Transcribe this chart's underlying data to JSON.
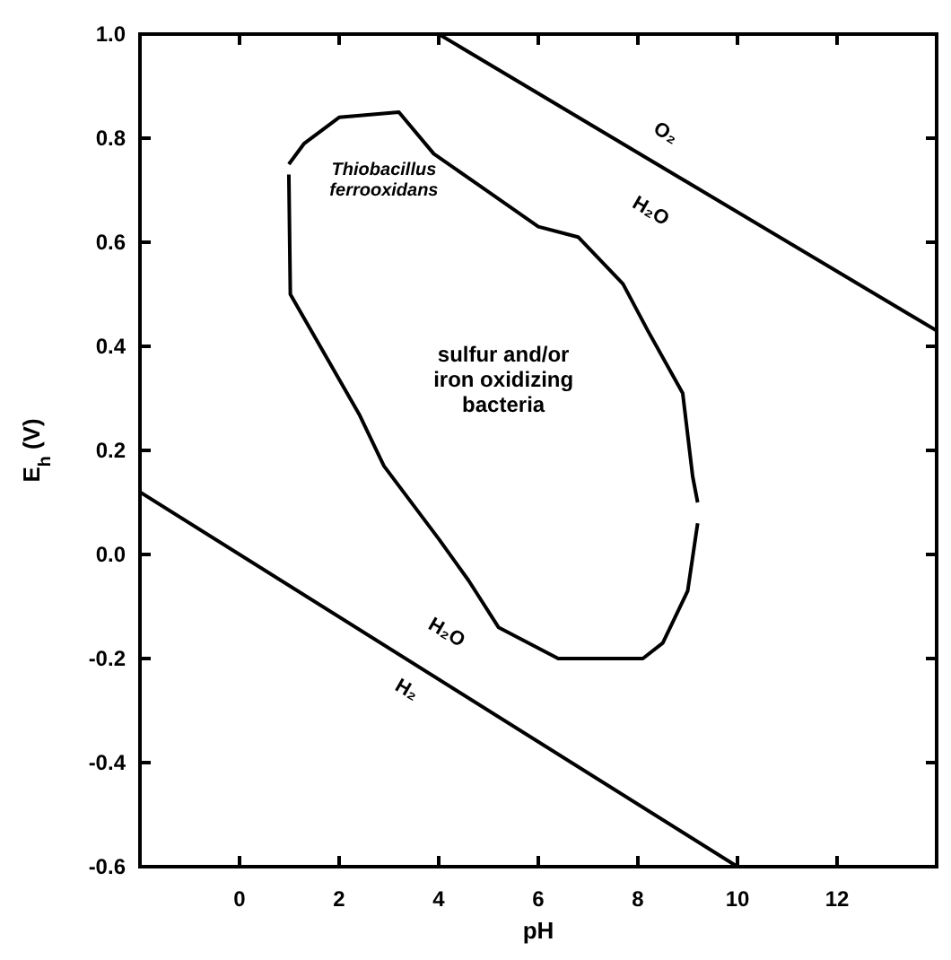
{
  "chart_data": {
    "type": "line",
    "xlabel": "pH",
    "ylabel": "E$_{h}$ (V)",
    "xlim": [
      -2,
      14
    ],
    "ylim": [
      -0.6,
      1.0
    ],
    "xticks": [
      0,
      2,
      4,
      6,
      8,
      10,
      12
    ],
    "yticks": [
      {
        "value": -0.6,
        "label": "-0.6"
      },
      {
        "value": -0.4,
        "label": "-0.4"
      },
      {
        "value": -0.2,
        "label": "-0.2"
      },
      {
        "value": 0,
        "label": "0.0"
      },
      {
        "value": 0.2,
        "label": "0.2"
      },
      {
        "value": 0.4,
        "label": "0.4"
      },
      {
        "value": 0.6,
        "label": "0.6"
      },
      {
        "value": 0.8,
        "label": "0.8"
      },
      {
        "value": 1.0,
        "label": "1.0"
      }
    ],
    "grid": false,
    "marker": "none",
    "line_style": "solid",
    "series": [
      {
        "color": "#000000",
        "x": [
          4,
          14
        ],
        "values": [
          1.0,
          0.43
        ]
      },
      {
        "color": "#000000",
        "x": [
          -2,
          10
        ],
        "values": [
          0.12,
          -0.6
        ]
      },
      {
        "color": "#000000",
        "x": [
          0.99,
          1.3,
          2.0,
          3.2,
          3.9,
          4.8,
          6.0,
          6.8,
          7.7,
          8.2,
          8.9,
          9.1,
          9.2
        ],
        "values": [
          0.75,
          0.79,
          0.84,
          0.85,
          0.77,
          0.71,
          0.63,
          0.61,
          0.52,
          0.43,
          0.31,
          0.15,
          0.1
        ]
      },
      {
        "color": "#000000",
        "x": [
          0.99,
          1.02,
          2.4,
          2.9,
          4.0,
          4.6,
          5.2,
          6.4,
          8.1,
          8.5,
          9.0,
          9.2
        ],
        "values": [
          0.73,
          0.5,
          0.27,
          0.17,
          0.03,
          -0.05,
          -0.14,
          -0.2,
          -0.2,
          -0.17,
          -0.07,
          0.06
        ]
      }
    ],
    "annotations": [
      "Thiobacillus\nferrooxidans",
      "sulfur and/or\niron oxidizing\nbacteria",
      "O₂",
      "H₂O",
      "H₂O",
      "H₂"
    ]
  }
}
